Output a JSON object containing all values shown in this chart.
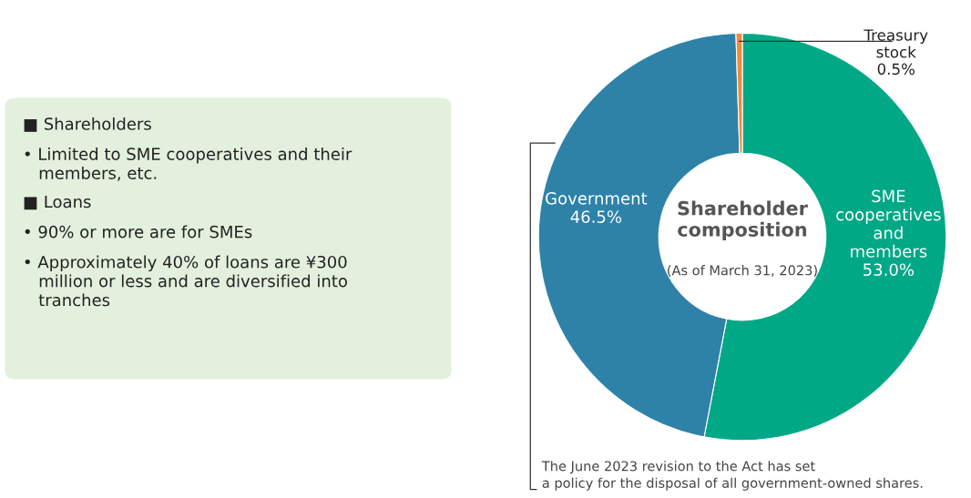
{
  "chart_data": [
    {
      "type": "other",
      "annotations": [
        "■ Shareholders",
        "• Limited to SME cooperatives and their\n   members, etc.",
        "■ Loans",
        "• 90% or more are for SMEs",
        "• Approximately 40% of loans are ¥300\n   million or less and are diversified into\n   tranches"
      ]
    },
    {
      "type": "donut",
      "title": "Shareholder\ncomposition",
      "subtitle": "(As of March 31, 2023)",
      "categories": [
        "SME\ncooperatives\nand\nmembers",
        "Government",
        "Treasury\nstock"
      ],
      "values": [
        53.0,
        46.5,
        0.5
      ],
      "value_labels": [
        "53.0%",
        "46.5%",
        "0.5%"
      ],
      "colors": [
        "#00a886",
        "#2e82a8",
        "#f08a3c"
      ],
      "annotations": [
        "The June 2023 revision to the Act has set\na policy for the disposal of all government-owned shares."
      ]
    }
  ]
}
